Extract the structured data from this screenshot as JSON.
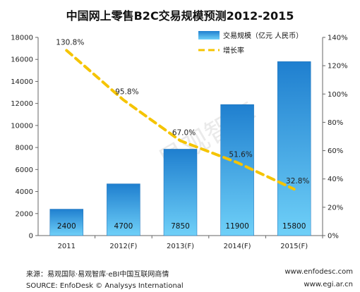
{
  "chart_data": {
    "type": "bar",
    "title": "中国网上零售B2C交易规模预测2012-2015",
    "categories": [
      "2011",
      "2012(F)",
      "2013(F)",
      "2014(F)",
      "2015(F)"
    ],
    "series": [
      {
        "name": "交易规模（亿元 人民币）",
        "type": "bar",
        "axis": "left",
        "values": [
          2400,
          4700,
          7850,
          11900,
          15800
        ],
        "labels": [
          "2400",
          "4700",
          "7850",
          "11900",
          "15800"
        ],
        "color": "#3399dd"
      },
      {
        "name": "增长率",
        "type": "line",
        "axis": "right",
        "values": [
          130.8,
          95.8,
          67.0,
          51.6,
          32.8
        ],
        "labels": [
          "130.8%",
          "95.8%",
          "67.0%",
          "51.6%",
          "32.8%"
        ],
        "color": "#f5c400",
        "dashed": true
      }
    ],
    "ylim": [
      0,
      18000
    ],
    "yticks": [
      "0",
      "2000",
      "4000",
      "6000",
      "8000",
      "10000",
      "12000",
      "14000",
      "16000",
      "18000"
    ],
    "y2lim": [
      0,
      140
    ],
    "y2ticks": [
      "0%",
      "20%",
      "40%",
      "60%",
      "80%",
      "100%",
      "120%",
      "140%"
    ],
    "xlabel": "",
    "ylabel": "",
    "grid": false,
    "legend_position": "top-right"
  },
  "watermark": "易观智库",
  "footer": {
    "source_cn": "来源：易观国际·易观智库·eBI中国互联网商情",
    "source_en": "SOURCE: EnfoDesk © Analysys International",
    "site1": "www.enfodesc.com",
    "site2": "www.egi.ar.cn"
  }
}
